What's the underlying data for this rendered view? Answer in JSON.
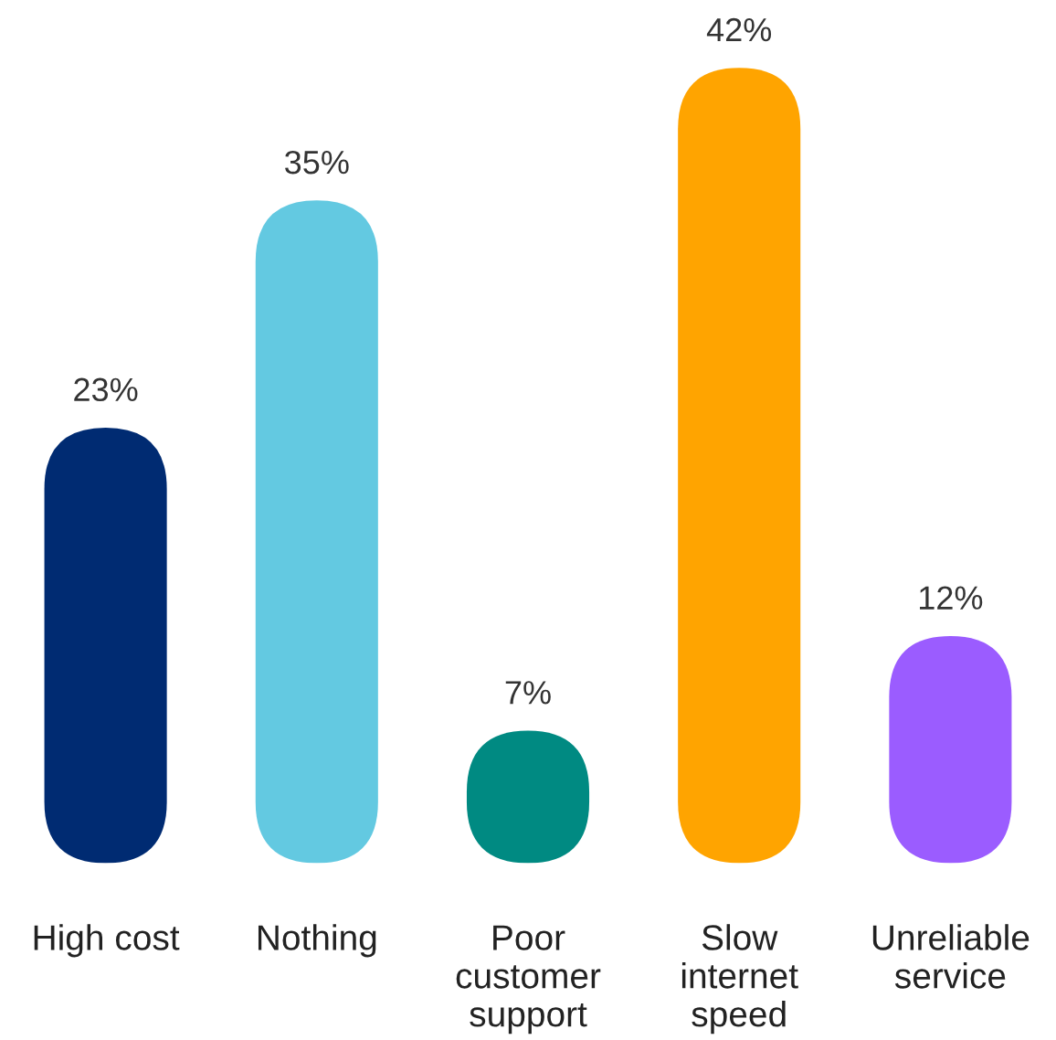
{
  "chart_data": {
    "type": "bar",
    "categories": [
      "High cost",
      "Nothing",
      "Poor\ncustomer\nsupport",
      "Slow\ninternet\nspeed",
      "Unreliable\nservice"
    ],
    "values": [
      23,
      35,
      7,
      42,
      12
    ],
    "colors": [
      "#002b72",
      "#63c9e1",
      "#008a82",
      "#ffa400",
      "#9b5cff"
    ],
    "value_labels": [
      "23%",
      "35%",
      "7%",
      "42%",
      "12%"
    ],
    "tick_labels": "x",
    "grid": false,
    "legend": false
  }
}
